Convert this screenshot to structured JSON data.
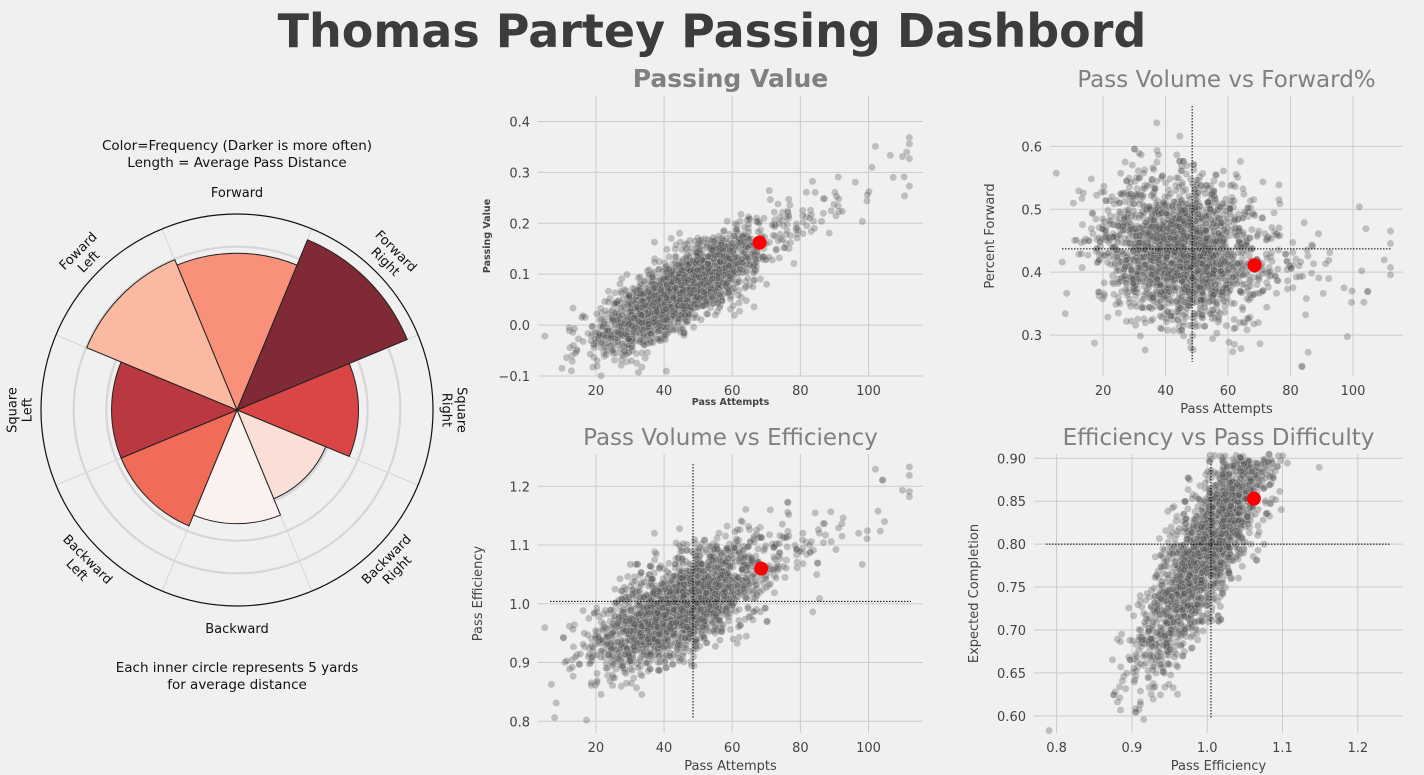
{
  "title": "Thomas Partey Passing Dashbord",
  "colors": {
    "background": "#f0f0f0",
    "grid": "#cbcbcb",
    "points": "#555555",
    "highlight": "#ff0000",
    "title_main": "#3c3c3c",
    "title_sub": "#808080"
  },
  "chart_data": [
    {
      "id": "radar",
      "type": "polar-bar",
      "notes": {
        "top_line1": "Color=Frequency (Darker is more often)",
        "top_line2": "Length = Average Pass Distance",
        "bottom_line1": "Each inner circle represents 5 yards",
        "bottom_line2": "for average distance"
      },
      "directions": [
        {
          "label": [
            "Forward"
          ],
          "value": 0.8,
          "color": "#f8907a"
        },
        {
          "label": [
            "Forward",
            "Right"
          ],
          "value": 0.94,
          "color": "#7f2a34"
        },
        {
          "label": [
            "Square",
            "Right"
          ],
          "value": 0.62,
          "color": "#d94645"
        },
        {
          "label": [
            "Backward",
            "Right"
          ],
          "value": 0.49,
          "color": "#f9dfd5"
        },
        {
          "label": [
            "Backward"
          ],
          "value": 0.58,
          "color": "#fbf1ee"
        },
        {
          "label": [
            "Backward",
            "Left"
          ],
          "value": 0.64,
          "color": "#f06b58"
        },
        {
          "label": [
            "Square",
            "Left"
          ],
          "value": 0.64,
          "color": "#ba3840"
        },
        {
          "label": [
            "Foward",
            "Left"
          ],
          "value": 0.83,
          "color": "#fbb9a2"
        }
      ]
    },
    {
      "id": "passing-value",
      "type": "scatter",
      "title": "Passing Value",
      "xlabel": "Pass Attempts",
      "ylabel": "Passing Value",
      "xlim": [
        3,
        116
      ],
      "ylim": [
        -0.1,
        0.45
      ],
      "xticks": [
        20,
        40,
        60,
        80,
        100
      ],
      "yticks": [
        -0.1,
        0.0,
        0.1,
        0.2,
        0.3,
        0.4
      ],
      "yticklabels": [
        "−0.1",
        "0.0",
        "0.1",
        "0.2",
        "0.3",
        "0.4"
      ],
      "highlight": {
        "x": 68,
        "y": 0.162
      },
      "cloud": {
        "x_mean": 44,
        "x_sd": 12,
        "x_min": 5,
        "x_max": 112,
        "y_at_0": -0.1,
        "y_slope": 0.0037,
        "y_noise": 0.035
      },
      "reference_lines": null
    },
    {
      "id": "volume-forward",
      "type": "scatter",
      "title": "Pass Volume vs Forward%",
      "xlabel": "Pass Attempts",
      "ylabel": "Percent Forward",
      "xlim": [
        3,
        116
      ],
      "ylim": [
        0.235,
        0.68
      ],
      "xticks": [
        20,
        40,
        60,
        80,
        100
      ],
      "yticks": [
        0.3,
        0.4,
        0.5,
        0.6
      ],
      "yticklabels": [
        "0.3",
        "0.4",
        "0.5",
        "0.6"
      ],
      "highlight": {
        "x": 68.5,
        "y": 0.411
      },
      "cloud": {
        "x_mean": 44,
        "x_sd": 12,
        "x_min": 5,
        "x_max": 112,
        "y_at_0": 0.47,
        "y_slope": -0.0008,
        "y_noise": 0.055
      },
      "reference_lines": {
        "x": 48.5,
        "y": 0.437
      }
    },
    {
      "id": "volume-efficiency",
      "type": "scatter",
      "title": "Pass Volume vs Efficiency",
      "xlabel": "Pass Attempts",
      "ylabel": "Pass Efficiency",
      "xlim": [
        3,
        116
      ],
      "ylim": [
        0.78,
        1.255
      ],
      "xticks": [
        20,
        40,
        60,
        80,
        100
      ],
      "yticks": [
        0.8,
        0.9,
        1.0,
        1.1,
        1.2
      ],
      "yticklabels": [
        "0.8",
        "0.9",
        "1.0",
        "1.1",
        "1.2"
      ],
      "highlight": {
        "x": 68.5,
        "y": 1.06
      },
      "cloud": {
        "x_mean": 44,
        "x_sd": 12,
        "x_min": 5,
        "x_max": 112,
        "y_at_0": 0.88,
        "y_slope": 0.0026,
        "y_noise": 0.04
      },
      "reference_lines": {
        "x": 48.5,
        "y": 1.004
      }
    },
    {
      "id": "efficiency-difficulty",
      "type": "scatter",
      "title": "Efficiency vs Pass Difficulty",
      "xlabel": "Pass Efficiency",
      "ylabel": "Expected Completion",
      "xlim": [
        0.77,
        1.26
      ],
      "ylim": [
        0.58,
        0.905
      ],
      "xticks": [
        0.8,
        0.9,
        1.0,
        1.1,
        1.2
      ],
      "yticks": [
        0.6,
        0.65,
        0.7,
        0.75,
        0.8,
        0.85,
        0.9
      ],
      "yticklabels": [
        "0.60",
        "0.65",
        "0.70",
        "0.75",
        "0.80",
        "0.85",
        "0.90"
      ],
      "xticklabels": [
        "0.8",
        "0.9",
        "1.0",
        "1.1",
        "1.2"
      ],
      "highlight": {
        "x": 1.062,
        "y": 0.853
      },
      "cloud": {
        "x_mean": 1.0,
        "x_sd": 0.045,
        "x_min": 0.79,
        "x_max": 1.24,
        "y_at_0": -0.55,
        "y_slope": 1.35,
        "y_noise": 0.04
      },
      "reference_lines": {
        "x": 1.005,
        "y": 0.8
      }
    }
  ]
}
